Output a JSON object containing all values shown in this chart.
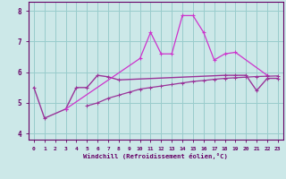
{
  "xlabel": "Windchill (Refroidissement éolien,°C)",
  "hours": [
    0,
    1,
    2,
    3,
    4,
    5,
    6,
    7,
    8,
    9,
    10,
    11,
    12,
    13,
    14,
    15,
    16,
    17,
    18,
    19,
    20,
    21,
    22,
    23
  ],
  "line1_y": [
    5.5,
    4.5,
    null,
    4.8,
    5.5,
    5.5,
    5.9,
    5.85,
    5.75,
    null,
    null,
    null,
    null,
    null,
    null,
    null,
    null,
    null,
    5.9,
    5.9,
    5.9,
    5.4,
    5.8,
    5.8
  ],
  "line2_y": [
    null,
    null,
    null,
    4.8,
    null,
    null,
    null,
    null,
    null,
    null,
    6.45,
    7.3,
    6.6,
    6.6,
    7.85,
    7.85,
    7.3,
    6.4,
    6.6,
    6.65,
    null,
    null,
    5.9,
    null
  ],
  "line3_y": [
    null,
    null,
    null,
    null,
    null,
    4.9,
    5.0,
    5.15,
    5.25,
    5.35,
    5.45,
    5.5,
    5.55,
    5.6,
    5.65,
    5.7,
    5.73,
    5.77,
    5.8,
    5.82,
    5.84,
    5.86,
    5.87,
    5.88
  ],
  "line_color": "#993399",
  "line_color_spiky": "#cc33cc",
  "line_color_base": "#993399",
  "bg_color": "#cce8e8",
  "grid_color": "#99cccc",
  "ylim": [
    3.8,
    8.3
  ],
  "xlim": [
    -0.5,
    23.5
  ],
  "yticks": [
    4,
    5,
    6,
    7,
    8
  ],
  "xticks": [
    0,
    1,
    2,
    3,
    4,
    5,
    6,
    7,
    8,
    9,
    10,
    11,
    12,
    13,
    14,
    15,
    16,
    17,
    18,
    19,
    20,
    21,
    22,
    23
  ]
}
